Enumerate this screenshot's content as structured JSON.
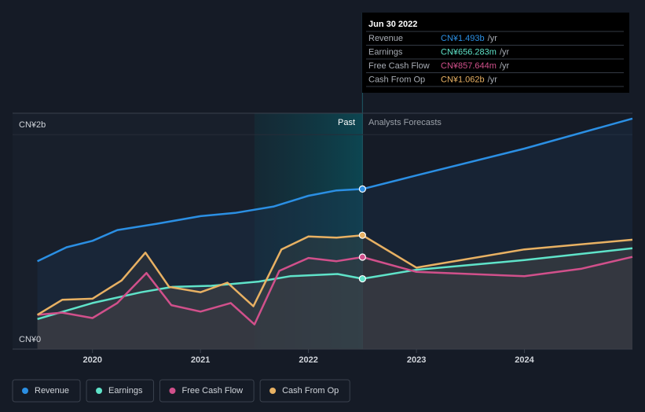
{
  "chart_data": {
    "type": "line",
    "ylim": [
      0,
      2.2
    ],
    "yticks": [
      {
        "value": 0,
        "label": "CN¥0"
      },
      {
        "value": 2,
        "label": "CN¥2b"
      }
    ],
    "xlim": [
      2019.26,
      2025.0
    ],
    "xticks": [
      2020,
      2021,
      2022,
      2023,
      2024
    ],
    "forecast_start": 2022.5,
    "annotations": {
      "past": "Past",
      "forecast": "Analysts Forecasts"
    },
    "series": [
      {
        "name": "Revenue",
        "color": "#2b8fe3",
        "x": [
          2019.49,
          2019.76,
          2020.0,
          2020.23,
          2020.6,
          2021.0,
          2021.32,
          2021.68,
          2022.0,
          2022.26,
          2022.5,
          2023.0,
          2024.0,
          2025.0
        ],
        "values": [
          0.82,
          0.95,
          1.01,
          1.11,
          1.17,
          1.24,
          1.27,
          1.33,
          1.43,
          1.48,
          1.493,
          1.62,
          1.87,
          2.15
        ]
      },
      {
        "name": "Earnings",
        "color": "#5fe3c9",
        "x": [
          2019.49,
          2020.0,
          2020.45,
          2020.74,
          2021.1,
          2021.54,
          2021.83,
          2022.27,
          2022.5,
          2023.0,
          2024.0,
          2025.0
        ],
        "values": [
          0.28,
          0.43,
          0.53,
          0.58,
          0.59,
          0.63,
          0.68,
          0.7,
          0.656,
          0.74,
          0.83,
          0.94
        ]
      },
      {
        "name": "Free Cash Flow",
        "color": "#d1508b",
        "x": [
          2019.49,
          2019.72,
          2020.0,
          2020.23,
          2020.5,
          2020.73,
          2021.0,
          2021.28,
          2021.5,
          2021.73,
          2022.0,
          2022.26,
          2022.5,
          2023.0,
          2024.0,
          2024.53,
          2025.0
        ],
        "values": [
          0.32,
          0.34,
          0.29,
          0.43,
          0.71,
          0.41,
          0.35,
          0.43,
          0.23,
          0.73,
          0.85,
          0.82,
          0.858,
          0.72,
          0.68,
          0.75,
          0.86
        ]
      },
      {
        "name": "Cash From Op",
        "color": "#e8b163",
        "x": [
          2019.49,
          2019.72,
          2020.0,
          2020.27,
          2020.49,
          2020.71,
          2021.0,
          2021.25,
          2021.49,
          2021.75,
          2022.0,
          2022.26,
          2022.5,
          2023.0,
          2024.0,
          2025.0
        ],
        "values": [
          0.32,
          0.46,
          0.47,
          0.64,
          0.9,
          0.58,
          0.53,
          0.62,
          0.4,
          0.93,
          1.05,
          1.04,
          1.062,
          0.76,
          0.93,
          1.02
        ]
      }
    ],
    "tooltip": {
      "title": "Jun 30 2022",
      "unit": "/yr",
      "series_index": [
        10,
        8,
        12,
        12
      ],
      "rows": [
        {
          "label": "Revenue",
          "value": "CN¥1.493b"
        },
        {
          "label": "Earnings",
          "value": "CN¥656.283m"
        },
        {
          "label": "Free Cash Flow",
          "value": "CN¥857.644m"
        },
        {
          "label": "Cash From Op",
          "value": "CN¥1.062b"
        }
      ]
    }
  }
}
